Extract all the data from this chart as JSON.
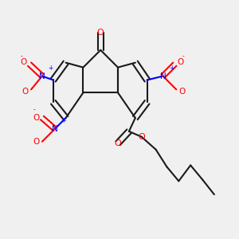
{
  "background_color": "#f0f0f0",
  "bond_color": "#1a1a1a",
  "atom_colors": {
    "O": "#ff0000",
    "N": "#0000ff",
    "C": "#1a1a1a"
  },
  "figsize": [
    3.0,
    3.0
  ],
  "dpi": 100
}
